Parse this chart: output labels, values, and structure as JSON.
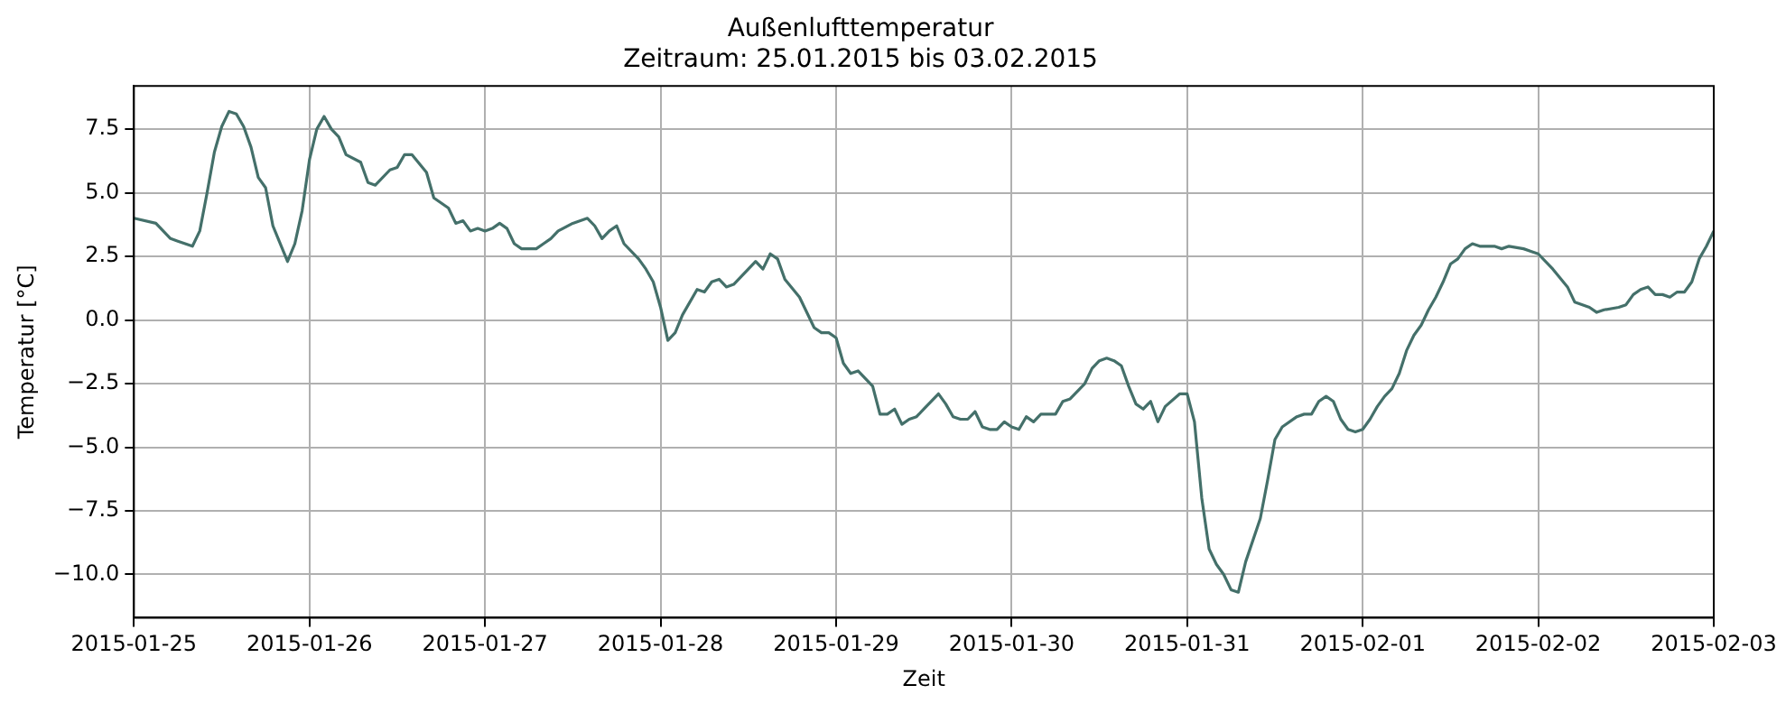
{
  "chart_data": {
    "type": "line",
    "title": "Außenlufttemperatur",
    "subtitle": "Zeitraum: 25.01.2015 bis 03.02.2015",
    "xlabel": "Zeit",
    "ylabel": "Temperatur [°C]",
    "x": [
      "2015-01-25T00:00",
      "2015-01-25T03:00",
      "2015-01-25T05:00",
      "2015-01-25T06:00",
      "2015-01-25T08:00",
      "2015-01-25T09:00",
      "2015-01-25T10:00",
      "2015-01-25T11:00",
      "2015-01-25T12:00",
      "2015-01-25T13:00",
      "2015-01-25T14:00",
      "2015-01-25T15:00",
      "2015-01-25T16:00",
      "2015-01-25T17:00",
      "2015-01-25T18:00",
      "2015-01-25T19:00",
      "2015-01-25T21:00",
      "2015-01-25T22:00",
      "2015-01-25T23:00",
      "2015-01-26T00:00",
      "2015-01-26T01:00",
      "2015-01-26T02:00",
      "2015-01-26T03:00",
      "2015-01-26T04:00",
      "2015-01-26T05:00",
      "2015-01-26T07:00",
      "2015-01-26T08:00",
      "2015-01-26T09:00",
      "2015-01-26T11:00",
      "2015-01-26T12:00",
      "2015-01-26T13:00",
      "2015-01-26T14:00",
      "2015-01-26T16:00",
      "2015-01-26T17:00",
      "2015-01-26T19:00",
      "2015-01-26T20:00",
      "2015-01-26T21:00",
      "2015-01-26T22:00",
      "2015-01-26T23:00",
      "2015-01-27T00:00",
      "2015-01-27T01:00",
      "2015-01-27T02:00",
      "2015-01-27T03:00",
      "2015-01-27T04:00",
      "2015-01-27T05:00",
      "2015-01-27T07:00",
      "2015-01-27T08:00",
      "2015-01-27T09:00",
      "2015-01-27T10:00",
      "2015-01-27T12:00",
      "2015-01-27T14:00",
      "2015-01-27T15:00",
      "2015-01-27T16:00",
      "2015-01-27T17:00",
      "2015-01-27T18:00",
      "2015-01-27T19:00",
      "2015-01-27T21:00",
      "2015-01-27T22:00",
      "2015-01-27T23:00",
      "2015-01-28T00:00",
      "2015-01-28T01:00",
      "2015-01-28T02:00",
      "2015-01-28T03:00",
      "2015-01-28T05:00",
      "2015-01-28T06:00",
      "2015-01-28T07:00",
      "2015-01-28T08:00",
      "2015-01-28T09:00",
      "2015-01-28T10:00",
      "2015-01-28T12:00",
      "2015-01-28T13:00",
      "2015-01-28T14:00",
      "2015-01-28T15:00",
      "2015-01-28T16:00",
      "2015-01-28T17:00",
      "2015-01-28T19:00",
      "2015-01-28T21:00",
      "2015-01-28T22:00",
      "2015-01-28T23:00",
      "2015-01-29T00:00",
      "2015-01-29T01:00",
      "2015-01-29T02:00",
      "2015-01-29T03:00",
      "2015-01-29T05:00",
      "2015-01-29T06:00",
      "2015-01-29T07:00",
      "2015-01-29T08:00",
      "2015-01-29T09:00",
      "2015-01-29T10:00",
      "2015-01-29T11:00",
      "2015-01-29T12:00",
      "2015-01-29T14:00",
      "2015-01-29T15:00",
      "2015-01-29T16:00",
      "2015-01-29T17:00",
      "2015-01-29T18:00",
      "2015-01-29T19:00",
      "2015-01-29T20:00",
      "2015-01-29T21:00",
      "2015-01-29T22:00",
      "2015-01-29T23:00",
      "2015-01-30T00:00",
      "2015-01-30T01:00",
      "2015-01-30T02:00",
      "2015-01-30T03:00",
      "2015-01-30T04:00",
      "2015-01-30T06:00",
      "2015-01-30T07:00",
      "2015-01-30T08:00",
      "2015-01-30T10:00",
      "2015-01-30T11:00",
      "2015-01-30T12:00",
      "2015-01-30T13:00",
      "2015-01-30T14:00",
      "2015-01-30T15:00",
      "2015-01-30T16:00",
      "2015-01-30T17:00",
      "2015-01-30T18:00",
      "2015-01-30T19:00",
      "2015-01-30T20:00",
      "2015-01-30T21:00",
      "2015-01-30T23:00",
      "2015-01-31T00:00",
      "2015-01-31T01:00",
      "2015-01-31T02:00",
      "2015-01-31T03:00",
      "2015-01-31T04:00",
      "2015-01-31T05:00",
      "2015-01-31T06:00",
      "2015-01-31T07:00",
      "2015-01-31T08:00",
      "2015-01-31T10:00",
      "2015-01-31T11:00",
      "2015-01-31T12:00",
      "2015-01-31T13:00",
      "2015-01-31T15:00",
      "2015-01-31T16:00",
      "2015-01-31T17:00",
      "2015-01-31T18:00",
      "2015-01-31T19:00",
      "2015-01-31T20:00",
      "2015-01-31T21:00",
      "2015-01-31T22:00",
      "2015-01-31T23:00",
      "2015-02-01T00:00",
      "2015-02-01T01:00",
      "2015-02-01T02:00",
      "2015-02-01T03:00",
      "2015-02-01T04:00",
      "2015-02-01T05:00",
      "2015-02-01T06:00",
      "2015-02-01T07:00",
      "2015-02-01T08:00",
      "2015-02-01T09:00",
      "2015-02-01T10:00",
      "2015-02-01T11:00",
      "2015-02-01T12:00",
      "2015-02-01T13:00",
      "2015-02-01T14:00",
      "2015-02-01T15:00",
      "2015-02-01T16:00",
      "2015-02-01T18:00",
      "2015-02-01T19:00",
      "2015-02-01T20:00",
      "2015-02-01T22:00",
      "2015-02-01T23:00",
      "2015-02-02T00:00",
      "2015-02-02T02:00",
      "2015-02-02T04:00",
      "2015-02-02T05:00",
      "2015-02-02T07:00",
      "2015-02-02T08:00",
      "2015-02-02T09:00",
      "2015-02-02T11:00",
      "2015-02-02T12:00",
      "2015-02-02T13:00",
      "2015-02-02T14:00",
      "2015-02-02T15:00",
      "2015-02-02T16:00",
      "2015-02-02T17:00",
      "2015-02-02T18:00",
      "2015-02-02T19:00",
      "2015-02-02T20:00",
      "2015-02-02T21:00",
      "2015-02-02T22:00",
      "2015-02-02T23:00",
      "2015-02-03T00:00"
    ],
    "series": [
      {
        "color": "#44706a",
        "values": [
          4.0,
          3.8,
          3.2,
          3.1,
          2.9,
          3.5,
          5.0,
          6.6,
          7.6,
          8.2,
          8.1,
          7.6,
          6.8,
          5.6,
          5.2,
          3.7,
          2.3,
          3.0,
          4.3,
          6.3,
          7.5,
          8.0,
          7.5,
          7.2,
          6.5,
          6.2,
          5.4,
          5.3,
          5.9,
          6.0,
          6.5,
          6.5,
          5.8,
          4.8,
          4.4,
          3.8,
          3.9,
          3.5,
          3.6,
          3.5,
          3.6,
          3.8,
          3.6,
          3.0,
          2.8,
          2.8,
          3.0,
          3.2,
          3.5,
          3.8,
          4.0,
          3.7,
          3.2,
          3.5,
          3.7,
          3.0,
          2.4,
          2.0,
          1.5,
          0.5,
          -0.8,
          -0.5,
          0.2,
          1.2,
          1.1,
          1.5,
          1.6,
          1.3,
          1.4,
          2.0,
          2.3,
          2.0,
          2.6,
          2.4,
          1.6,
          0.9,
          -0.3,
          -0.5,
          -0.5,
          -0.7,
          -1.7,
          -2.1,
          -2.0,
          -2.6,
          -3.7,
          -3.7,
          -3.5,
          -4.1,
          -3.9,
          -3.8,
          -3.5,
          -2.9,
          -3.3,
          -3.8,
          -3.9,
          -3.9,
          -3.6,
          -4.2,
          -4.3,
          -4.3,
          -4.0,
          -4.2,
          -4.3,
          -3.8,
          -4.0,
          -3.7,
          -3.7,
          -3.2,
          -3.1,
          -2.5,
          -1.9,
          -1.6,
          -1.5,
          -1.6,
          -1.8,
          -2.6,
          -3.3,
          -3.5,
          -3.2,
          -4.0,
          -3.4,
          -2.9,
          -2.9,
          -4.0,
          -7.0,
          -9.0,
          -9.6,
          -10.0,
          -10.6,
          -10.7,
          -9.5,
          -7.8,
          -6.3,
          -4.7,
          -4.2,
          -3.8,
          -3.7,
          -3.7,
          -3.2,
          -3.0,
          -3.2,
          -3.9,
          -4.3,
          -4.4,
          -4.3,
          -3.9,
          -3.4,
          -3.0,
          -2.7,
          -2.1,
          -1.2,
          -0.6,
          -0.2,
          0.4,
          0.9,
          1.5,
          2.2,
          2.4,
          2.8,
          3.0,
          2.9,
          2.9,
          2.8,
          2.9,
          2.8,
          2.7,
          2.6,
          2.0,
          1.3,
          0.7,
          0.5,
          0.3,
          0.4,
          0.5,
          0.6,
          1.0,
          1.2,
          1.3,
          1.0,
          1.0,
          0.9,
          1.1,
          1.1,
          1.5,
          2.4,
          2.9,
          3.5
        ]
      }
    ],
    "xlim": [
      "2015-01-25",
      "2015-02-03"
    ],
    "xticks": [
      "2015-01-25",
      "2015-01-26",
      "2015-01-27",
      "2015-01-28",
      "2015-01-29",
      "2015-01-30",
      "2015-01-31",
      "2015-02-01",
      "2015-02-02",
      "2015-02-03"
    ],
    "ylim": [
      -11.7,
      9.2
    ],
    "yticks": [
      {
        "value": -10,
        "label": "−10.0"
      },
      {
        "value": -7.5,
        "label": "−7.5"
      },
      {
        "value": -5,
        "label": "−5.0"
      },
      {
        "value": -2.5,
        "label": "−2.5"
      },
      {
        "value": 0,
        "label": "0.0"
      },
      {
        "value": 2.5,
        "label": "2.5"
      },
      {
        "value": 5,
        "label": "5.0"
      },
      {
        "value": 7.5,
        "label": "7.5"
      }
    ],
    "grid": true,
    "legend": false,
    "marker": "none",
    "line_style": "solid"
  }
}
